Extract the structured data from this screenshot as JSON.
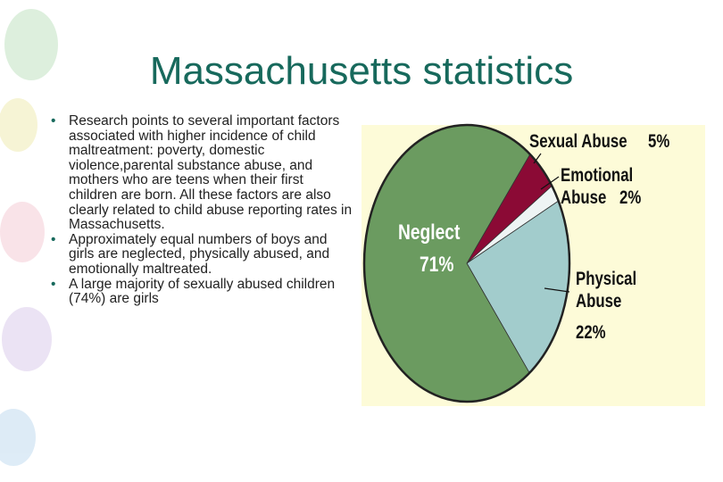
{
  "title": "Massachusetts statistics",
  "bullets": [
    "Research points to several important factors associated with higher incidence of child maltreatment: poverty, domestic violence,parental substance abuse, and mothers who are teens when their first children are born.  All these factors are also clearly related to child abuse reporting rates in Massachusetts.",
    "Approximately equal numbers of boys and girls are neglected, physically abused, and emotionally maltreated.",
    "A large majority of sexually abused children (74%) are girls"
  ],
  "chart_data": {
    "type": "pie",
    "categories": [
      "Sexual Abuse",
      "Emotional Abuse",
      "Physical Abuse",
      "Neglect"
    ],
    "values": [
      5,
      2,
      22,
      71
    ],
    "value_labels": [
      "5%",
      "2%",
      "22%",
      "71%"
    ],
    "colors": [
      "#8b0a35",
      "#eef4f4",
      "#a2cccc",
      "#6b9b60"
    ]
  }
}
